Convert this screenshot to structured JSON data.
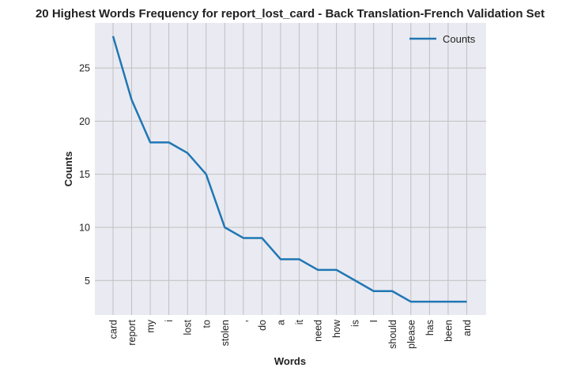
{
  "chart_data": {
    "type": "line",
    "title": "20 Highest Words Frequency for report_lost_card - Back Translation-French Validation Set",
    "xlabel": "Words",
    "ylabel": "Counts",
    "categories": [
      "card",
      "report",
      "my",
      "i",
      "lost",
      "to",
      "stolen",
      ",",
      "do",
      "a",
      "it",
      "need",
      "how",
      "is",
      "I",
      "should",
      "please",
      "has",
      "been",
      "and"
    ],
    "series": [
      {
        "name": "Counts",
        "values": [
          28,
          22,
          18,
          18,
          17,
          15,
          10,
          9,
          9,
          7,
          7,
          6,
          6,
          5,
          4,
          4,
          3,
          3,
          3,
          3
        ]
      }
    ],
    "yticks": [
      5,
      10,
      15,
      20,
      25
    ],
    "ylim": [
      1.75,
      29.25
    ],
    "grid": true,
    "legend_position": "top-right",
    "colors": {
      "line": "#1f77b4",
      "plot_background": "#eaeaf2",
      "grid": "#c0c0c0"
    }
  }
}
